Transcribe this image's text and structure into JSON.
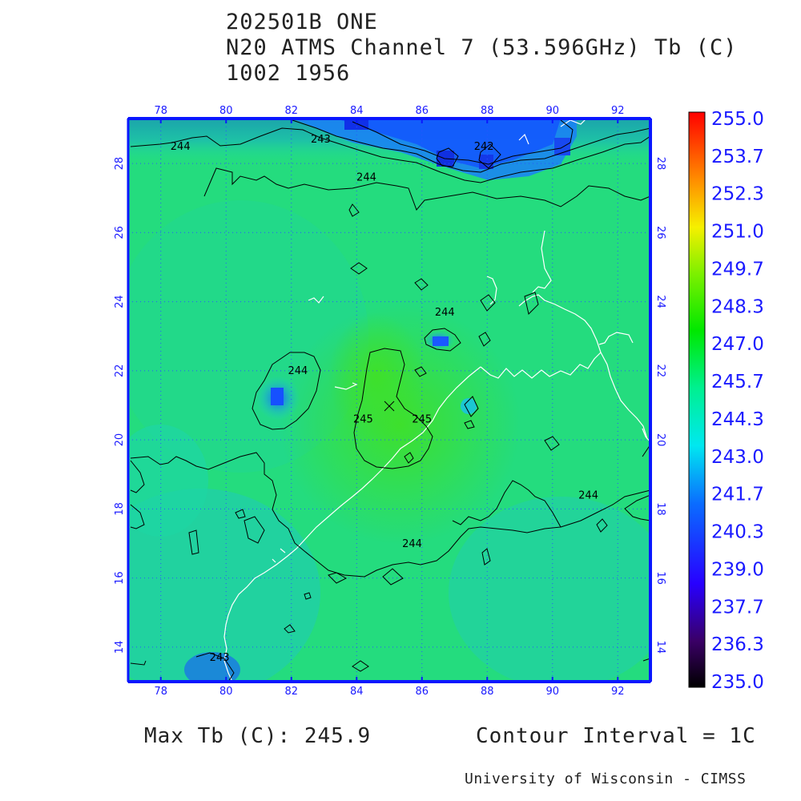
{
  "header": {
    "line1": "202501B ONE",
    "line2": "N20 ATMS Channel 7 (53.596GHz) Tb (C)",
    "line3": "1002 1956"
  },
  "map": {
    "lon_ticks": [
      "78",
      "80",
      "82",
      "84",
      "86",
      "88",
      "90",
      "92"
    ],
    "lat_ticks": [
      "14",
      "16",
      "18",
      "20",
      "22",
      "24",
      "26",
      "28"
    ],
    "lon_range": [
      77,
      93
    ],
    "lat_range": [
      13,
      29.3
    ],
    "colors": {
      "background": "#22e078",
      "axis": "#0a17ff",
      "grid": "#1a4cff",
      "coast": "#ffffff",
      "contour": "#000000"
    },
    "contour_labels": [
      {
        "text": "244",
        "lon": 78.6,
        "lat": 28.4
      },
      {
        "text": "243",
        "lon": 82.9,
        "lat": 28.6
      },
      {
        "text": "242",
        "lon": 87.9,
        "lat": 28.4
      },
      {
        "text": "244",
        "lon": 84.3,
        "lat": 27.5
      },
      {
        "text": "244",
        "lon": 86.7,
        "lat": 23.6
      },
      {
        "text": "244",
        "lon": 82.2,
        "lat": 21.9
      },
      {
        "text": "245",
        "lon": 84.2,
        "lat": 20.5
      },
      {
        "text": "245",
        "lon": 86.0,
        "lat": 20.5
      },
      {
        "text": "244",
        "lon": 85.7,
        "lat": 16.9
      },
      {
        "text": "244",
        "lon": 91.1,
        "lat": 18.3
      },
      {
        "text": "243",
        "lon": 79.8,
        "lat": 13.6
      }
    ]
  },
  "colorbar": {
    "labels": [
      "255.0",
      "253.7",
      "252.3",
      "251.0",
      "249.7",
      "248.3",
      "247.0",
      "245.7",
      "244.3",
      "243.0",
      "241.7",
      "240.3",
      "239.0",
      "237.7",
      "236.3",
      "235.0"
    ],
    "min": 235.0,
    "max": 255.0
  },
  "footer": {
    "max_tb": "Max Tb (C): 245.9",
    "contour_interval": "Contour Interval = 1C",
    "credit": "University of Wisconsin - CIMSS"
  }
}
